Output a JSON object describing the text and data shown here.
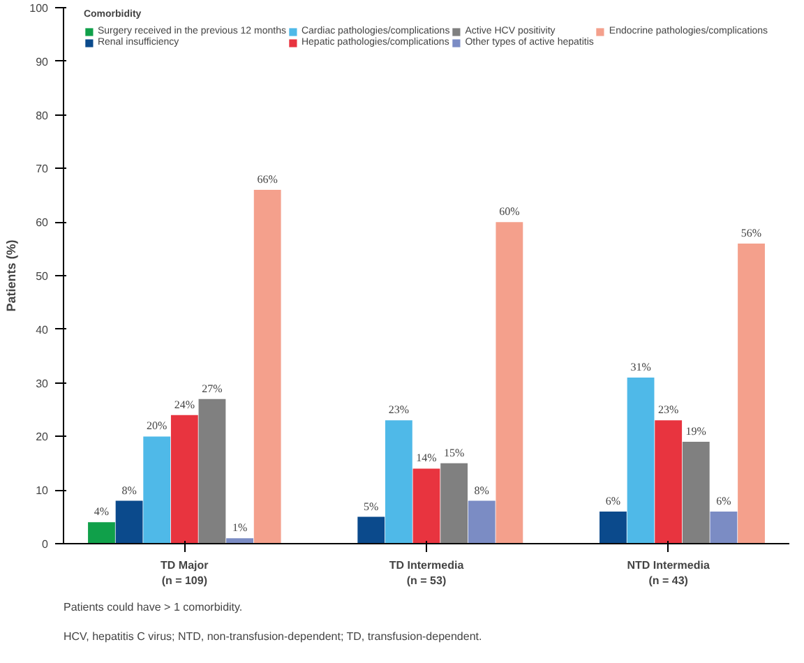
{
  "chart_data": {
    "type": "bar",
    "ylabel": "Patients (%)",
    "legend_title": "Comorbidity",
    "legend": "top",
    "grid": false,
    "categories": [
      "TD Major\n(n = 109)",
      "TD Intermedia\n(n = 53)",
      "NTD Intermedia\n(n = 43)"
    ],
    "ylim": [
      0,
      100
    ],
    "yticks": [
      0,
      10,
      20,
      30,
      40,
      50,
      60,
      70,
      80,
      90,
      100
    ],
    "series": [
      {
        "name": "Surgery received in the previous 12 months",
        "color": "#10a04a",
        "values": [
          4,
          null,
          null
        ],
        "value_labels": [
          "4%",
          null,
          null
        ]
      },
      {
        "name": "Renal insufficiency",
        "color": "#0b4a8c",
        "values": [
          8,
          5,
          6
        ],
        "value_labels": [
          "8%",
          "5%",
          "6%"
        ]
      },
      {
        "name": "Cardiac pathologies/complications",
        "color": "#4fb9e8",
        "values": [
          20,
          23,
          31
        ],
        "value_labels": [
          "20%",
          "23%",
          "31%"
        ]
      },
      {
        "name": "Hepatic pathologies/complications",
        "color": "#e8343f",
        "values": [
          24,
          14,
          23
        ],
        "value_labels": [
          "24%",
          "14%",
          "23%"
        ]
      },
      {
        "name": "Active HCV positivity",
        "color": "#808080",
        "values": [
          27,
          15,
          19
        ],
        "value_labels": [
          "27%",
          "15%",
          "19%"
        ]
      },
      {
        "name": "Other types of active hepatitis",
        "color": "#7b8cc4",
        "values": [
          1,
          8,
          6
        ],
        "value_labels": [
          "1%",
          "8%",
          "6%"
        ]
      },
      {
        "name": "Endocrine pathologies/complications",
        "color": "#f4a08c",
        "values": [
          66,
          60,
          56
        ],
        "value_labels": [
          "66%",
          "60%",
          "56%"
        ]
      }
    ],
    "annotations": [
      "Patients could have > 1 comorbidity.",
      "HCV, hepatitis C virus; NTD, non-transfusion-dependent; TD, transfusion-dependent."
    ]
  }
}
